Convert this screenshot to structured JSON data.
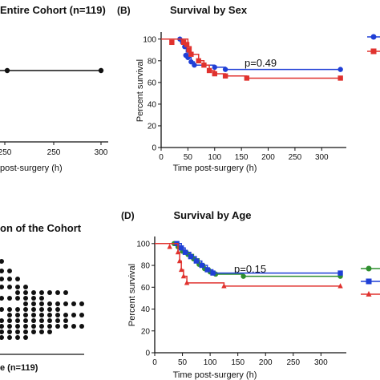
{
  "chart_data": [
    {
      "panel": "A",
      "type": "line",
      "title": "Entire Cohort (n=119)",
      "title_visible": "Entire Cohort (n=119)",
      "xlabel": "post-surgery (h)",
      "x_ticks_visible": [
        "250",
        "250",
        "300"
      ],
      "series": [
        {
          "color": "#000000",
          "x": [
            20,
            335
          ],
          "y": [
            100,
            100
          ]
        }
      ]
    },
    {
      "panel": "B",
      "panel_label": "(B)",
      "type": "line",
      "title": "Survival by Sex",
      "xlabel": "Time post-surgery (h)",
      "ylabel": "Percent survival",
      "xlim": [
        0,
        340
      ],
      "ylim": [
        0,
        105
      ],
      "x_ticks": [
        "0",
        "50",
        "100",
        "150",
        "200",
        "250",
        "300"
      ],
      "y_ticks": [
        "0",
        "20",
        "40",
        "60",
        "80",
        "100"
      ],
      "annotation": "p=0.49",
      "series": [
        {
          "color": "#1f3fd6",
          "marker": "circle",
          "steps": [
            [
              0,
              100
            ],
            [
              35,
              100
            ],
            [
              40,
              97
            ],
            [
              44,
              93
            ],
            [
              47,
              88
            ],
            [
              50,
              83
            ],
            [
              56,
              79
            ],
            [
              62,
              76
            ],
            [
              95,
              76
            ],
            [
              100,
              74
            ],
            [
              120,
              72
            ],
            [
              335,
              72
            ]
          ],
          "markers": [
            [
              35,
              100
            ],
            [
              40,
              97
            ],
            [
              44,
              93
            ],
            [
              46,
              85
            ],
            [
              50,
              83
            ],
            [
              56,
              79
            ],
            [
              62,
              76
            ],
            [
              100,
              74
            ],
            [
              120,
              72
            ],
            [
              335,
              72
            ]
          ]
        },
        {
          "color": "#e0322e",
          "marker": "square",
          "steps": [
            [
              0,
              100
            ],
            [
              45,
              100
            ],
            [
              50,
              93
            ],
            [
              56,
              86
            ],
            [
              70,
              80
            ],
            [
              80,
              76
            ],
            [
              90,
              71
            ],
            [
              100,
              68
            ],
            [
              120,
              66
            ],
            [
              160,
              64
            ],
            [
              335,
              64
            ]
          ],
          "markers": [
            [
              20,
              97
            ],
            [
              42,
              97
            ],
            [
              48,
              95
            ],
            [
              52,
              90
            ],
            [
              56,
              86
            ],
            [
              70,
              80
            ],
            [
              80,
              76
            ],
            [
              90,
              71
            ],
            [
              100,
              68
            ],
            [
              120,
              66
            ],
            [
              160,
              64
            ],
            [
              335,
              64
            ]
          ]
        }
      ]
    },
    {
      "panel": "C",
      "type": "scatter",
      "title": "on of the Cohort",
      "title_visible": "on of the Cohort",
      "xlabel": "(n=119)",
      "xlabel_visible": "e (n=119)"
    },
    {
      "panel": "D",
      "panel_label": "(D)",
      "type": "line",
      "title": "Survival by Age",
      "xlabel": "Time post-surgery (h)",
      "ylabel": "Percent survival",
      "xlim": [
        0,
        340
      ],
      "ylim": [
        0,
        105
      ],
      "x_ticks": [
        "0",
        "50",
        "100",
        "150",
        "200",
        "250",
        "300"
      ],
      "y_ticks": [
        "0",
        "20",
        "40",
        "60",
        "80",
        "100"
      ],
      "annotation": "p=0.15",
      "series": [
        {
          "color": "#2f8f2f",
          "marker": "circle",
          "steps": [
            [
              0,
              100
            ],
            [
              35,
              100
            ],
            [
              42,
              97
            ],
            [
              50,
              93
            ],
            [
              60,
              90
            ],
            [
              70,
              86
            ],
            [
              80,
              81
            ],
            [
              90,
              77
            ],
            [
              100,
              74
            ],
            [
              110,
              72
            ],
            [
              160,
              70
            ],
            [
              335,
              70
            ]
          ],
          "markers": [
            [
              35,
              100
            ],
            [
              42,
              97
            ],
            [
              50,
              93
            ],
            [
              60,
              90
            ],
            [
              70,
              86
            ],
            [
              80,
              81
            ],
            [
              90,
              77
            ],
            [
              100,
              74
            ],
            [
              110,
              72
            ],
            [
              160,
              70
            ],
            [
              335,
              70
            ]
          ]
        },
        {
          "color": "#1f3fd6",
          "marker": "square",
          "steps": [
            [
              0,
              100
            ],
            [
              40,
              100
            ],
            [
              48,
              96
            ],
            [
              55,
              92
            ],
            [
              65,
              88
            ],
            [
              75,
              84
            ],
            [
              85,
              80
            ],
            [
              95,
              76
            ],
            [
              105,
              73
            ],
            [
              335,
              73
            ]
          ],
          "markers": [
            [
              40,
              100
            ],
            [
              48,
              96
            ],
            [
              55,
              92
            ],
            [
              65,
              88
            ],
            [
              75,
              84
            ],
            [
              85,
              80
            ],
            [
              95,
              76
            ],
            [
              105,
              73
            ],
            [
              335,
              73
            ]
          ]
        },
        {
          "color": "#e0322e",
          "marker": "triangle",
          "steps": [
            [
              0,
              100
            ],
            [
              38,
              100
            ],
            [
              42,
              92
            ],
            [
              45,
              84
            ],
            [
              48,
              76
            ],
            [
              52,
              70
            ],
            [
              58,
              64
            ],
            [
              125,
              61
            ],
            [
              335,
              61
            ]
          ],
          "markers": [
            [
              27,
              97
            ],
            [
              42,
              92
            ],
            [
              45,
              84
            ],
            [
              48,
              76
            ],
            [
              52,
              70
            ],
            [
              58,
              64
            ],
            [
              125,
              61
            ],
            [
              335,
              61
            ]
          ]
        }
      ]
    }
  ],
  "legend_swatches": [
    {
      "panel": "B",
      "color": "#1f3fd6",
      "marker": "circle"
    },
    {
      "panel": "B",
      "color": "#e0322e",
      "marker": "square"
    },
    {
      "panel": "D",
      "color": "#2f8f2f",
      "marker": "circle"
    },
    {
      "panel": "D",
      "color": "#1f3fd6",
      "marker": "square"
    },
    {
      "panel": "D",
      "color": "#e0322e",
      "marker": "triangle"
    }
  ]
}
